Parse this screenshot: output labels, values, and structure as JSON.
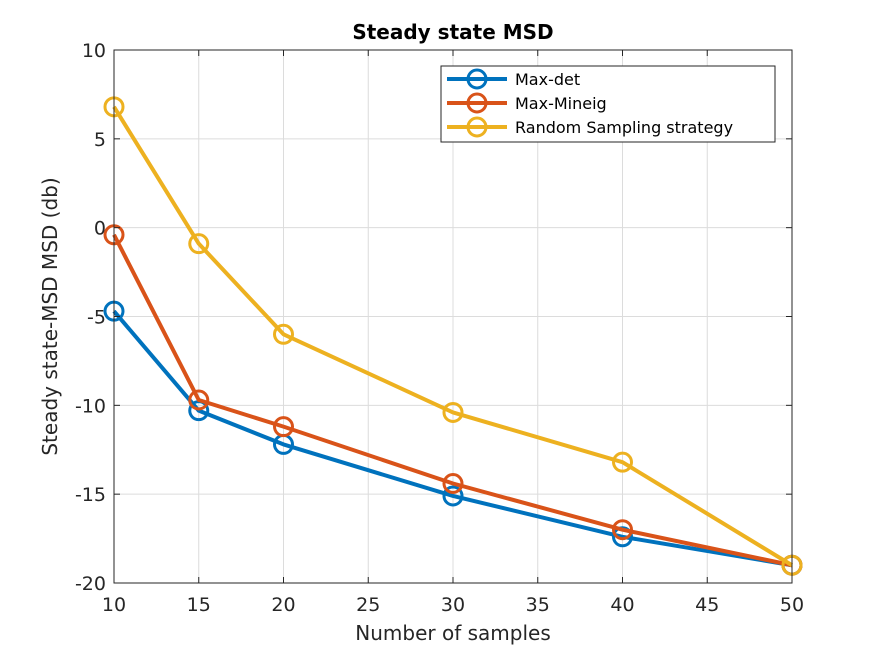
{
  "chart_data": {
    "type": "line",
    "title": "Steady state MSD",
    "xlabel": "Number of samples",
    "ylabel": "Steady state-MSD MSD (db)",
    "xlim": [
      10,
      50
    ],
    "ylim": [
      -20,
      10
    ],
    "xticks": [
      10,
      15,
      20,
      25,
      30,
      35,
      40,
      45,
      50
    ],
    "yticks": [
      -20,
      -15,
      -10,
      -5,
      0,
      5,
      10
    ],
    "grid": true,
    "legend_position": "top-right",
    "x": [
      10,
      15,
      20,
      30,
      40,
      50
    ],
    "series": [
      {
        "name": "Max-det",
        "color": "#0072BD",
        "marker": "circle",
        "values": [
          -4.7,
          -10.3,
          -12.2,
          -15.1,
          -17.4,
          -19.0
        ]
      },
      {
        "name": "Max-Mineig",
        "color": "#D95319",
        "marker": "circle",
        "values": [
          -0.4,
          -9.7,
          -11.2,
          -14.4,
          -17.0,
          -19.0
        ]
      },
      {
        "name": "Random Sampling strategy",
        "color": "#EDB120",
        "marker": "circle",
        "values": [
          6.8,
          -0.9,
          -6.0,
          -10.4,
          -13.2,
          -19.0
        ]
      }
    ]
  }
}
